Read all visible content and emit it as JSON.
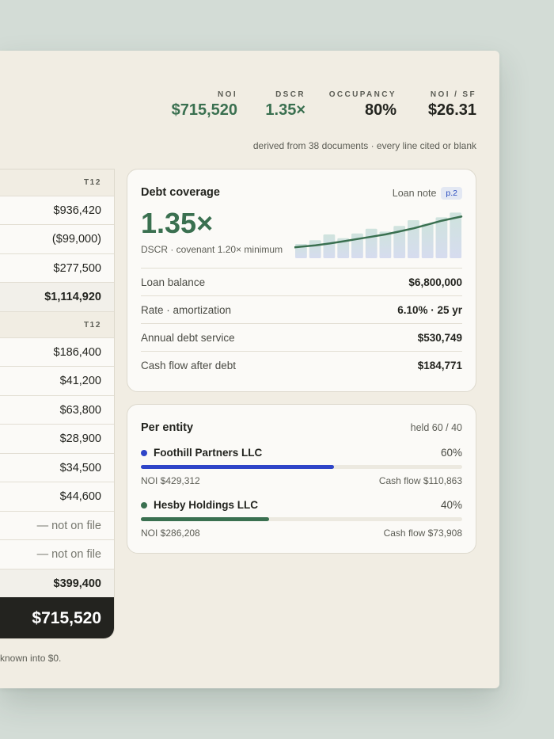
{
  "kpis": [
    {
      "label": "NOI",
      "value": "$715,520"
    },
    {
      "label": "DSCR",
      "value": "1.35×"
    },
    {
      "label": "Occupancy",
      "value": "80%"
    },
    {
      "label": "NOI / SF",
      "value": "$26.31"
    }
  ],
  "derived_note": "derived from 38 documents · every line cited or blank",
  "ledger": {
    "income_header": "T12",
    "income_values": [
      "$936,420",
      "($99,000)",
      "$277,500"
    ],
    "income_subtotal": "$1,114,920",
    "expense_header": "T12",
    "expense_values": [
      "$186,400",
      "$41,200",
      "$63,800",
      "$28,900",
      "$34,500",
      "$44,600"
    ],
    "missing_values": [
      "— not on file",
      "— not on file"
    ],
    "expense_subtotal": "$399,400",
    "total": "$715,520",
    "footnote": "known into $0."
  },
  "debt": {
    "title": "Debt coverage",
    "source_label": "Loan note",
    "source_page": "p.2",
    "dscr": "1.35×",
    "dscr_sub": "DSCR · covenant 1.20× minimum",
    "rows": [
      {
        "label": "Loan balance",
        "value": "$6,800,000"
      },
      {
        "label": "Rate · amortization",
        "value": "6.10% · 25 yr"
      },
      {
        "label": "Annual debt service",
        "value": "$530,749"
      },
      {
        "label": "Cash flow after debt",
        "value": "$184,771"
      }
    ]
  },
  "entity": {
    "title": "Per entity",
    "held": "held 60 / 40",
    "entities": [
      {
        "name": "Foothill Partners LLC",
        "pct": "60%",
        "share": 0.6,
        "color": "#2f45c8",
        "noi": "NOI $429,312",
        "cash": "Cash flow $110,863"
      },
      {
        "name": "Hesby Holdings LLC",
        "pct": "40%",
        "share": 0.4,
        "color": "#3a7050",
        "noi": "NOI $286,208",
        "cash": "Cash flow $73,908"
      }
    ]
  },
  "colors": {
    "accent_green": "#3a7050",
    "accent_blue": "#2f45c8"
  },
  "chart_data": {
    "type": "bar",
    "values": [
      0.3,
      0.38,
      0.5,
      0.42,
      0.52,
      0.62,
      0.56,
      0.68,
      0.8,
      0.73,
      0.86,
      0.96
    ],
    "trend": [
      0.12,
      0.17,
      0.22,
      0.28,
      0.34,
      0.4,
      0.46,
      0.54,
      0.62,
      0.72,
      0.82,
      0.93
    ]
  }
}
